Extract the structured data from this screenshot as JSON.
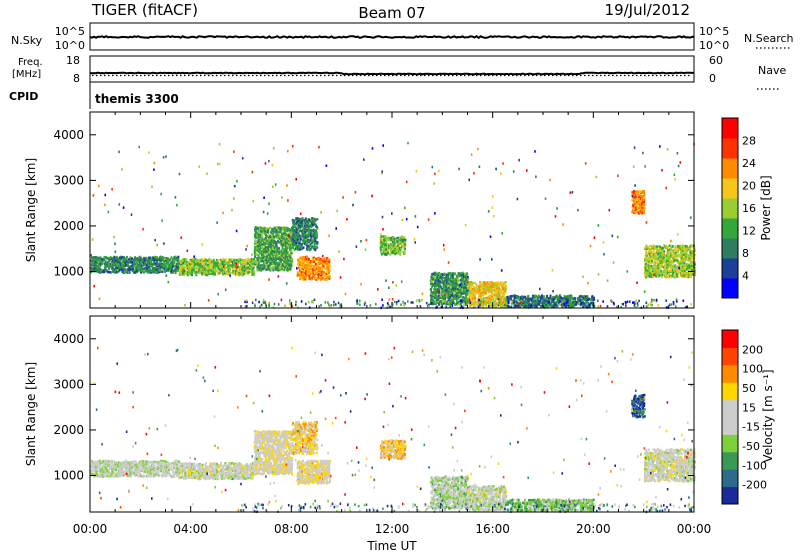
{
  "header": {
    "title": "TIGER (fitACF)",
    "beam": "Beam 07",
    "date": "19/Jul/2012"
  },
  "strip_panels": {
    "nsky": {
      "left_label": "N.Sky",
      "left_ticks": [
        "10^5",
        "10^0"
      ],
      "right_label": "N.Search",
      "right_ticks": [
        "10^5",
        "10^0"
      ]
    },
    "freq": {
      "left_label_1": "Freq.",
      "left_label_2": "[MHz]",
      "left_ticks": [
        "18",
        "8"
      ],
      "right_label": "Nave",
      "right_ticks": [
        "60",
        "0"
      ]
    },
    "cpid": {
      "label": "CPID",
      "program": "themis 3300"
    }
  },
  "x_axis": {
    "label": "Time UT",
    "ticks": [
      "00:00",
      "04:00",
      "08:00",
      "12:00",
      "16:00",
      "20:00",
      "00:00"
    ]
  },
  "colors": {
    "power_scale": [
      "#0000ff",
      "#1c3f9a",
      "#2e7d5e",
      "#35a73a",
      "#9acd32",
      "#f5c518",
      "#ff8c00",
      "#ff3300",
      "#ff0000"
    ],
    "velocity_scale": [
      "#1a2a9a",
      "#2e6b8a",
      "#3a9a55",
      "#7fcf3a",
      "#cccccc",
      "#cccccc",
      "#ffd700",
      "#ff8c00",
      "#ff4500",
      "#ff0000"
    ]
  },
  "chart_data": [
    {
      "type": "heatmap",
      "title": "Power",
      "xlabel": "",
      "ylabel": "Slant Range [km]",
      "x_range_hours": [
        0,
        24
      ],
      "ylim": [
        200,
        4500
      ],
      "yticks": [
        "1000",
        "2000",
        "3000",
        "4000"
      ],
      "colorbar": {
        "label": "Power [dB]",
        "ticks": [
          "28",
          "24",
          "20",
          "16",
          "12",
          "8",
          "4"
        ],
        "range": [
          0,
          30
        ]
      },
      "echo_regions": [
        {
          "t": [
            0.0,
            3.5
          ],
          "r": [
            1000,
            1350
          ],
          "value": 9
        },
        {
          "t": [
            3.5,
            6.5
          ],
          "r": [
            950,
            1300
          ],
          "value": 14
        },
        {
          "t": [
            6.5,
            8.0
          ],
          "r": [
            1050,
            2000
          ],
          "value": 11
        },
        {
          "t": [
            8.0,
            9.0
          ],
          "r": [
            1500,
            2200
          ],
          "value": 9
        },
        {
          "t": [
            8.2,
            9.5
          ],
          "r": [
            850,
            1350
          ],
          "value": 21
        },
        {
          "t": [
            11.5,
            12.5
          ],
          "r": [
            1400,
            1800
          ],
          "value": 13
        },
        {
          "t": [
            13.5,
            15.0
          ],
          "r": [
            300,
            1000
          ],
          "value": 10
        },
        {
          "t": [
            15.0,
            16.5
          ],
          "r": [
            250,
            800
          ],
          "value": 18
        },
        {
          "t": [
            16.5,
            20.0
          ],
          "r": [
            250,
            500
          ],
          "value": 8
        },
        {
          "t": [
            21.5,
            22.0
          ],
          "r": [
            2300,
            2800
          ],
          "value": 22
        },
        {
          "t": [
            22.0,
            24.0
          ],
          "r": [
            900,
            1600
          ],
          "value": 15
        }
      ]
    },
    {
      "type": "heatmap",
      "title": "Velocity",
      "xlabel": "Time UT",
      "ylabel": "Slant Range [km]",
      "x_range_hours": [
        0,
        24
      ],
      "ylim": [
        200,
        4500
      ],
      "yticks": [
        "1000",
        "2000",
        "3000",
        "4000"
      ],
      "colorbar": {
        "label": "Velocity [m s⁻¹]",
        "ticks": [
          "200",
          "100",
          "50",
          "15",
          "-15",
          "-50",
          "-100",
          "-200"
        ],
        "range": [
          -250,
          250
        ]
      },
      "echo_regions": [
        {
          "t": [
            0.0,
            3.5
          ],
          "r": [
            1000,
            1350
          ],
          "value": -20
        },
        {
          "t": [
            3.5,
            6.5
          ],
          "r": [
            950,
            1300
          ],
          "value": 0
        },
        {
          "t": [
            6.5,
            8.0
          ],
          "r": [
            1050,
            2000
          ],
          "value": 20
        },
        {
          "t": [
            8.0,
            9.0
          ],
          "r": [
            1500,
            2200
          ],
          "value": 60
        },
        {
          "t": [
            8.2,
            9.5
          ],
          "r": [
            850,
            1350
          ],
          "value": 35
        },
        {
          "t": [
            11.5,
            12.5
          ],
          "r": [
            1400,
            1800
          ],
          "value": 70
        },
        {
          "t": [
            13.5,
            15.0
          ],
          "r": [
            300,
            1000
          ],
          "value": -40
        },
        {
          "t": [
            15.0,
            16.5
          ],
          "r": [
            250,
            800
          ],
          "value": -10
        },
        {
          "t": [
            16.5,
            20.0
          ],
          "r": [
            250,
            500
          ],
          "value": -80
        },
        {
          "t": [
            21.5,
            22.0
          ],
          "r": [
            2300,
            2800
          ],
          "value": -180
        },
        {
          "t": [
            22.0,
            24.0
          ],
          "r": [
            900,
            1600
          ],
          "value": 0
        }
      ]
    }
  ]
}
